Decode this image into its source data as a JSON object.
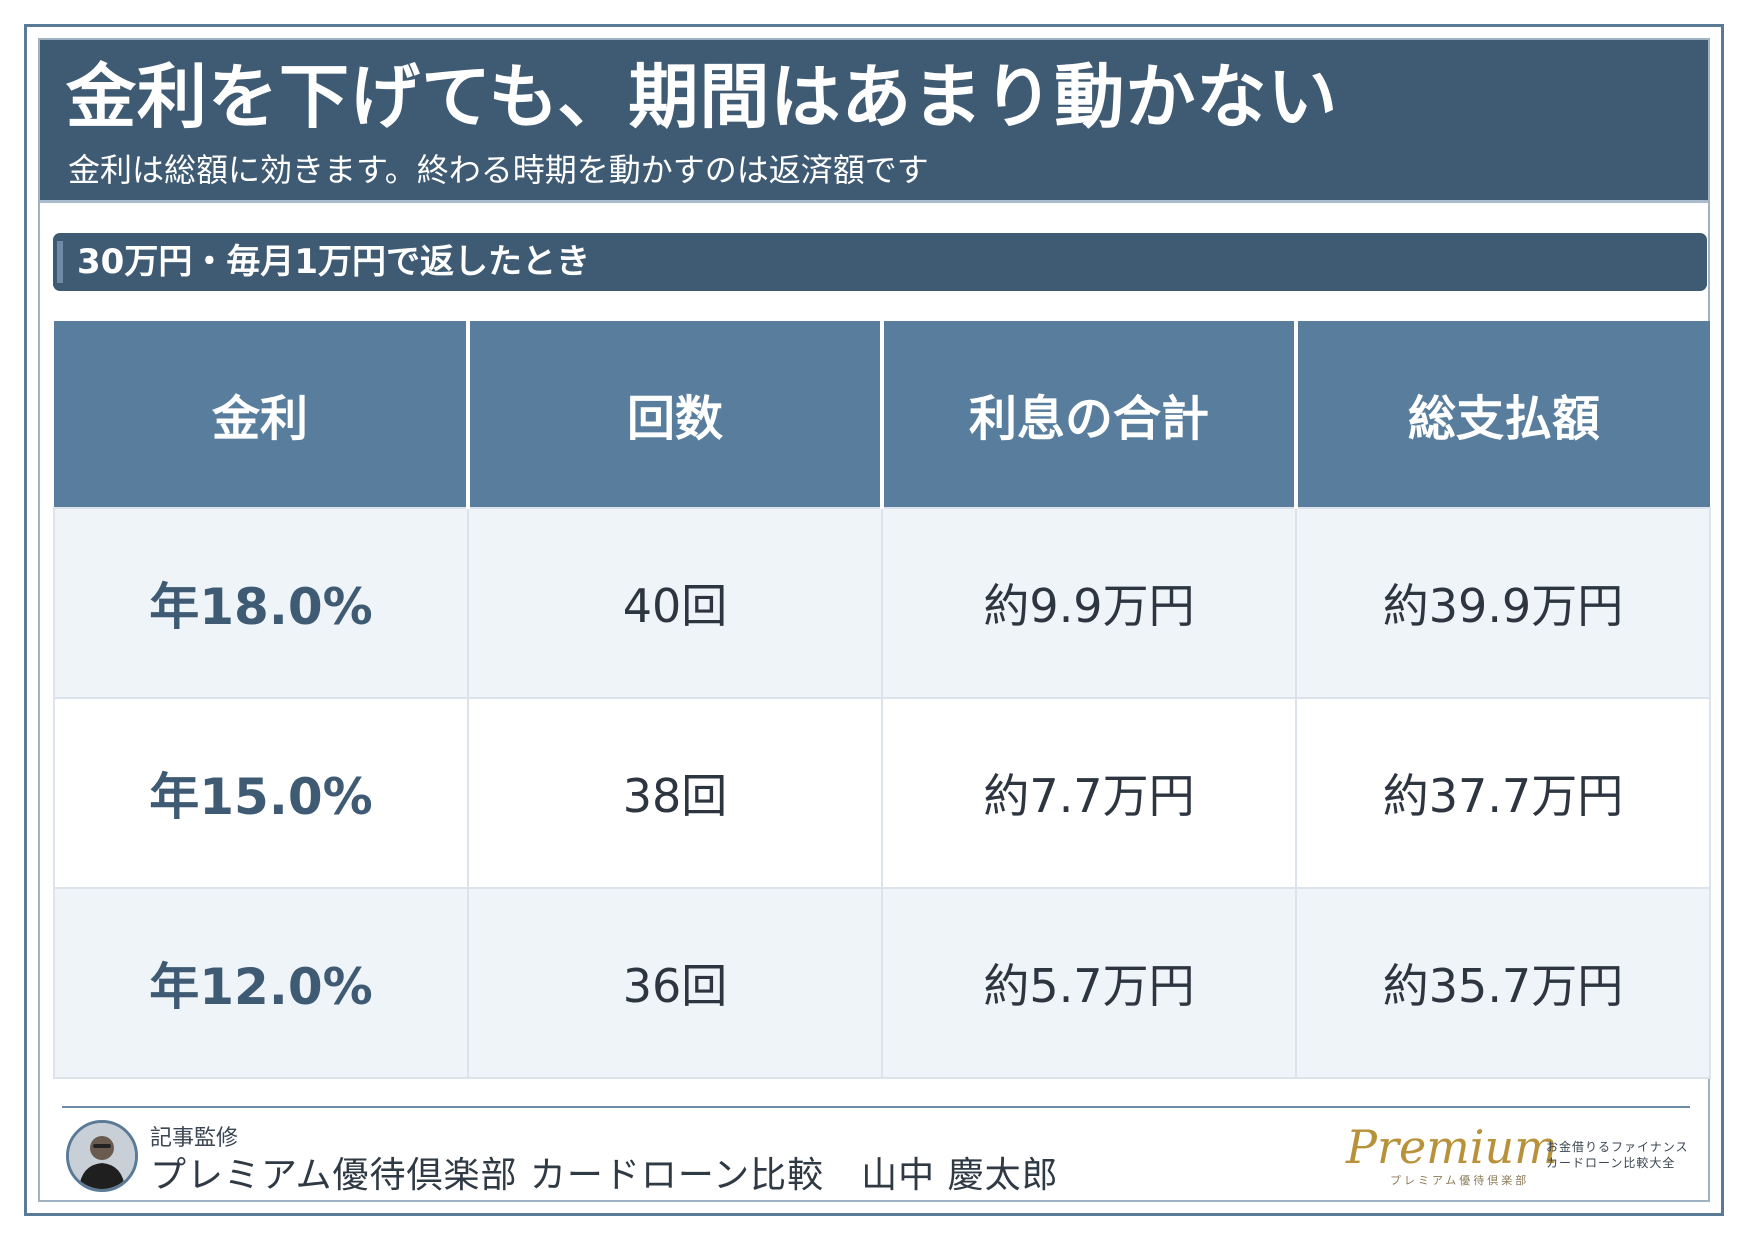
{
  "header": {
    "title": "金利を下げても、期間はあまり動かない",
    "subtitle": "金利は総額に効きます。終わる時期を動かすのは返済額です"
  },
  "section": {
    "label": "30万円・毎月1万円で返したとき"
  },
  "table": {
    "headers": [
      "金利",
      "回数",
      "利息の合計",
      "総支払額"
    ],
    "rows": [
      [
        "年18.0%",
        "40回",
        "約9.9万円",
        "約39.9万円"
      ],
      [
        "年15.0%",
        "38回",
        "約7.7万円",
        "約37.7万円"
      ],
      [
        "年12.0%",
        "36回",
        "約5.7万円",
        "約35.7万円"
      ]
    ]
  },
  "footer": {
    "supervision_label": "記事監修",
    "supervisor": "プレミアム優待倶楽部 カードローン比較　山中 慶太郎",
    "logo_script": "Premium",
    "logo_sub": "プレミアム優待倶楽部",
    "logo_tag_line1": "お金借りるファイナンス",
    "logo_tag_line2": "カードローン比較大全"
  },
  "colors": {
    "header_bg": "#3f5b74",
    "table_header_bg": "#587d9d",
    "row_alt_bg": "#eff4f8",
    "logo_gold": "#b8923a"
  }
}
